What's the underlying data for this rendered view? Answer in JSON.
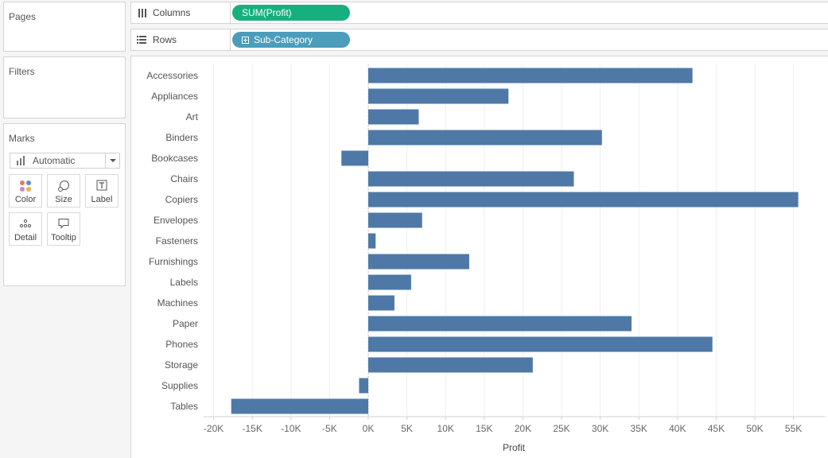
{
  "cards": {
    "pages_title": "Pages",
    "filters_title": "Filters",
    "marks_title": "Marks"
  },
  "marks": {
    "mark_type": "Automatic",
    "buttons": {
      "color": "Color",
      "size": "Size",
      "label": "Label",
      "detail": "Detail",
      "tooltip": "Tooltip"
    }
  },
  "shelves": {
    "columns_label": "Columns",
    "columns_pill": "SUM(Profit)",
    "rows_label": "Rows",
    "rows_pill": "Sub-Category"
  },
  "colors": {
    "bar": "#4e79a7",
    "measure_pill": "#16b07f",
    "dimension_pill": "#4b9dbb"
  },
  "chart_data": {
    "type": "bar",
    "orientation": "horizontal",
    "categories": [
      "Accessories",
      "Appliances",
      "Art",
      "Binders",
      "Bookcases",
      "Chairs",
      "Copiers",
      "Envelopes",
      "Fasteners",
      "Furnishings",
      "Labels",
      "Machines",
      "Paper",
      "Phones",
      "Storage",
      "Supplies",
      "Tables"
    ],
    "values": [
      41937,
      18138,
      6528,
      30222,
      -3473,
      26590,
      55618,
      6964,
      950,
      13059,
      5546,
      3385,
      34054,
      44516,
      21279,
      -1189,
      -17725
    ],
    "xlabel": "Profit",
    "xlim": [
      -20000,
      55000
    ],
    "xticks": [
      -20000,
      -15000,
      -10000,
      -5000,
      0,
      5000,
      10000,
      15000,
      20000,
      25000,
      30000,
      35000,
      40000,
      45000,
      50000,
      55000
    ],
    "xtick_labels": [
      "-20K",
      "-15K",
      "-10K",
      "-5K",
      "0K",
      "5K",
      "10K",
      "15K",
      "20K",
      "25K",
      "30K",
      "35K",
      "40K",
      "45K",
      "50K",
      "55K"
    ],
    "grid": true
  }
}
